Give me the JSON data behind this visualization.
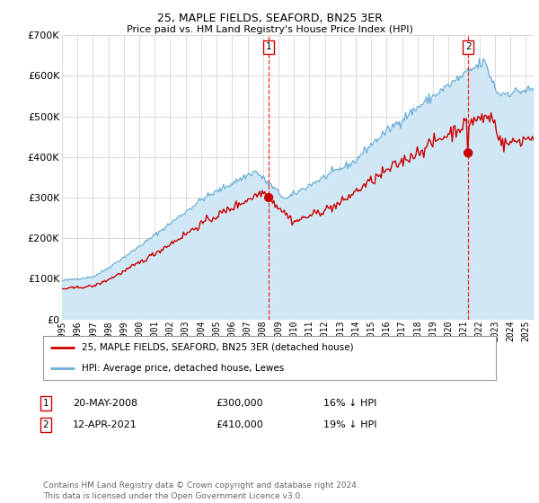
{
  "title": "25, MAPLE FIELDS, SEAFORD, BN25 3ER",
  "subtitle": "Price paid vs. HM Land Registry's House Price Index (HPI)",
  "hpi_line_color": "#6aaed6",
  "hpi_fill_color": "#d0e8f5",
  "price_color": "#cc0000",
  "chart_bg_color": "#ffffff",
  "legend_label_price": "25, MAPLE FIELDS, SEAFORD, BN25 3ER (detached house)",
  "legend_label_hpi": "HPI: Average price, detached house, Lewes",
  "sale1_date_num": 2008.37,
  "sale1_price": 300000,
  "sale2_date_num": 2021.27,
  "sale2_price": 410000,
  "footer": "Contains HM Land Registry data © Crown copyright and database right 2024.\nThis data is licensed under the Open Government Licence v3.0.",
  "ylim": [
    0,
    700000
  ],
  "xlim_start": 1995.0,
  "xlim_end": 2025.5,
  "title_fontsize": 9,
  "subtitle_fontsize": 8,
  "tick_fontsize": 7,
  "ytick_fontsize": 8
}
